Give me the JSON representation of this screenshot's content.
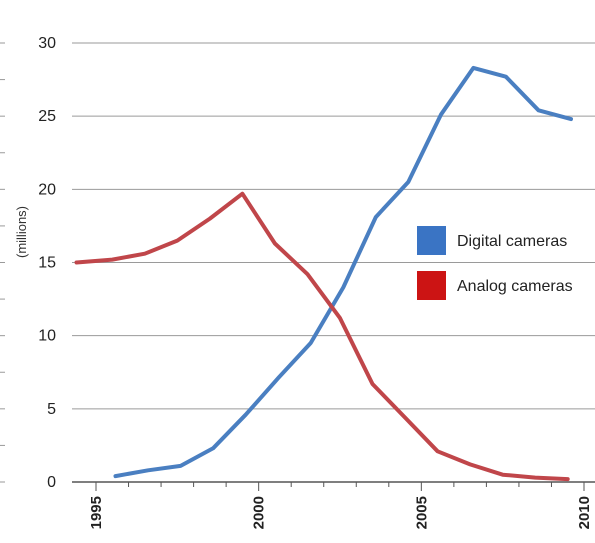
{
  "chart_data": {
    "type": "line",
    "title": "",
    "xlabel": "",
    "ylabel": "(millions)",
    "xlim": [
      1994,
      2010.5
    ],
    "ylim": [
      0,
      30
    ],
    "xticks": [
      1995,
      2000,
      2005,
      2010
    ],
    "xtick_labels": [
      "1995",
      "2000",
      "2005",
      "2010"
    ],
    "yticks": [
      0,
      5,
      10,
      15,
      20,
      25,
      30
    ],
    "ytick_labels": [
      "0",
      "5",
      "10",
      "15",
      "20",
      "25",
      "30"
    ],
    "grid": "horizontal",
    "legend": "right",
    "series": [
      {
        "name": "Digital cameras",
        "color": "#4a7fc1",
        "x": [
          1995.6,
          1996.6,
          1997.6,
          1998.6,
          1999.6,
          2000.6,
          2001.6,
          2002.6,
          2003.6,
          2004.6,
          2005.6,
          2006.6,
          2007.6,
          2008.6,
          2009.6
        ],
        "y": [
          0.4,
          0.8,
          1.1,
          2.3,
          4.6,
          7.1,
          9.5,
          13.3,
          18.1,
          20.5,
          25.1,
          28.3,
          27.7,
          25.4,
          24.8
        ]
      },
      {
        "name": "Analog cameras",
        "color": "#c0464a",
        "x": [
          1994.4,
          1995.5,
          1996.5,
          1997.5,
          1998.5,
          1999.5,
          2000.5,
          2001.5,
          2002.5,
          2003.5,
          2004.5,
          2005.5,
          2006.5,
          2007.5,
          2008.5,
          2009.5
        ],
        "y": [
          15.0,
          15.2,
          15.6,
          16.5,
          18.0,
          19.7,
          16.3,
          14.2,
          11.2,
          6.7,
          4.4,
          2.1,
          1.2,
          0.5,
          0.3,
          0.2
        ]
      }
    ]
  },
  "legend_swatches": [
    {
      "series": "Digital cameras",
      "color": "#3a74c4"
    },
    {
      "series": "Analog cameras",
      "color": "#cc1414"
    }
  ],
  "colors": {
    "gridline": "#9a9a9a",
    "axis": "#555555",
    "text": "#222222"
  }
}
